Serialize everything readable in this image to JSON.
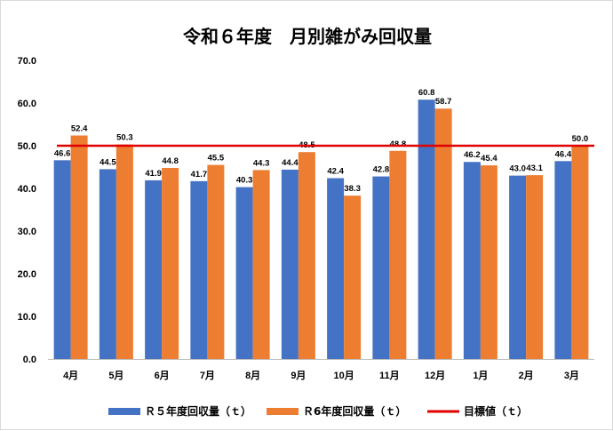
{
  "chart_data": {
    "type": "bar",
    "title": "令和６年度　月別雑がみ回収量",
    "categories": [
      "4月",
      "5月",
      "6月",
      "7月",
      "8月",
      "9月",
      "10月",
      "11月",
      "12月",
      "1月",
      "2月",
      "3月"
    ],
    "series": [
      {
        "name": "Ｒ５年度回収量（ｔ）",
        "color": "#4472C4",
        "values": [
          46.6,
          44.5,
          41.9,
          41.7,
          40.3,
          44.4,
          42.4,
          42.8,
          60.8,
          46.2,
          43.0,
          46.4
        ],
        "labels": [
          "46.6",
          "44.5",
          "41.9",
          "41.7",
          "40.3",
          "44.4",
          "42.4",
          "42.8",
          "60.8",
          "46.2",
          "43.0",
          "46.4"
        ]
      },
      {
        "name": "Ｒ6年度回収量（ｔ）",
        "color": "#ED7D31",
        "values": [
          52.4,
          50.3,
          44.8,
          45.5,
          44.3,
          48.5,
          38.3,
          48.8,
          58.7,
          45.4,
          43.1,
          50.0
        ],
        "labels": [
          "52.4",
          "50.3",
          "44.8",
          "45.5",
          "44.3",
          "48.5",
          "38.3",
          "48.8",
          "58.7",
          "45.4",
          "43.1",
          "50.0"
        ]
      }
    ],
    "target": {
      "name": "目標値（ｔ）",
      "value": 50.0,
      "color": "#E00000"
    },
    "ylim": [
      0,
      70
    ],
    "yticks": [
      "0.0",
      "10.0",
      "20.0",
      "30.0",
      "40.0",
      "50.0",
      "60.0",
      "70.0"
    ],
    "grid": false,
    "legend_position": "bottom"
  }
}
